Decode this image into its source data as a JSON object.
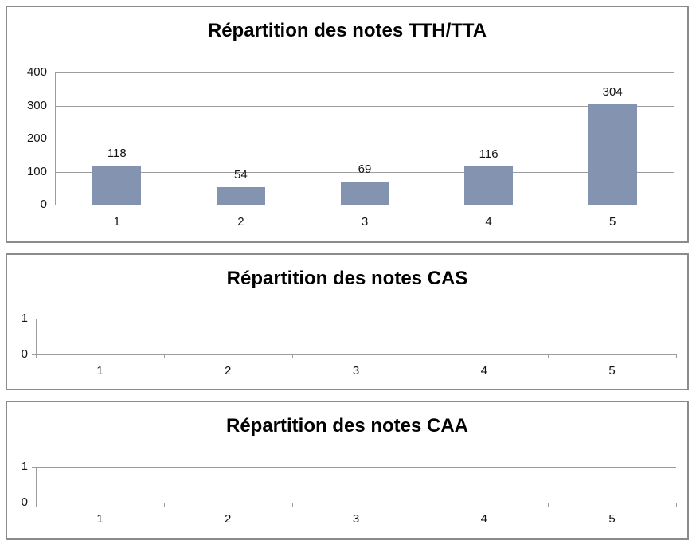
{
  "colors": {
    "bar_fill": "#8494B0",
    "gridline": "#9c9c9c",
    "panel_border": "#8b8b8b",
    "text": "#141414",
    "background": "#ffffff"
  },
  "chart_data": [
    {
      "type": "bar",
      "title": "Répartition des notes TTH/TTA",
      "categories": [
        "1",
        "2",
        "3",
        "4",
        "5"
      ],
      "values": [
        118,
        54,
        69,
        116,
        304
      ],
      "value_labels": [
        "118",
        "54",
        "69",
        "116",
        "304"
      ],
      "xlabel": "",
      "ylabel": "",
      "ylim": [
        0,
        400
      ],
      "yticks": [
        0,
        100,
        200,
        300,
        400
      ],
      "grid": true,
      "legend": "none",
      "bar_color": "#8494B0"
    },
    {
      "type": "bar",
      "title": "Répartition des notes CAS",
      "categories": [
        "1",
        "2",
        "3",
        "4",
        "5"
      ],
      "values": [],
      "value_labels": [],
      "xlabel": "",
      "ylabel": "",
      "ylim": [
        0,
        1
      ],
      "yticks": [
        0,
        1
      ],
      "grid": true,
      "legend": "none",
      "bar_color": "#8494B0"
    },
    {
      "type": "bar",
      "title": "Répartition des notes CAA",
      "categories": [
        "1",
        "2",
        "3",
        "4",
        "5"
      ],
      "values": [],
      "value_labels": [],
      "xlabel": "",
      "ylabel": "",
      "ylim": [
        0,
        1
      ],
      "yticks": [
        0,
        1
      ],
      "grid": true,
      "legend": "none",
      "bar_color": "#8494B0"
    }
  ]
}
